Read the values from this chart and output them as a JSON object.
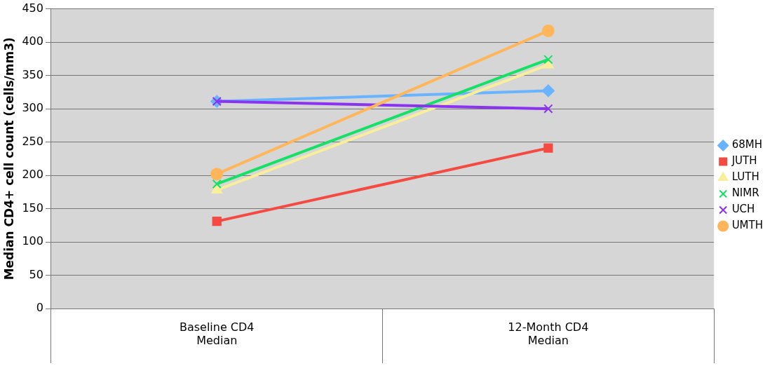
{
  "chart_data": {
    "type": "line",
    "ylabel": "Median CD4+ cell count (cells/mm3)",
    "categories": [
      "Baseline CD4\nMedian",
      "12-Month CD4\nMedian"
    ],
    "ylim": [
      0,
      450
    ],
    "yticks": [
      0,
      50,
      100,
      150,
      200,
      250,
      300,
      350,
      400,
      450
    ],
    "grid": "y",
    "legend": "right",
    "series": [
      {
        "name": "68MH",
        "color": "#6ab4ff",
        "marker": "diamond",
        "values": [
          311,
          327
        ]
      },
      {
        "name": "JUTH",
        "color": "#f44a41",
        "marker": "square",
        "values": [
          131,
          241
        ]
      },
      {
        "name": "LUTH",
        "color": "#f8ee9c",
        "marker": "triangle",
        "values": [
          178,
          366
        ]
      },
      {
        "name": "NIMR",
        "color": "#17e067",
        "marker": "cross",
        "values": [
          187,
          374
        ]
      },
      {
        "name": "UCH",
        "color": "#8a33f0",
        "marker": "cross",
        "values": [
          311,
          300
        ]
      },
      {
        "name": "UMTH",
        "color": "#ffb55a",
        "marker": "circle",
        "values": [
          202,
          417
        ]
      }
    ]
  }
}
